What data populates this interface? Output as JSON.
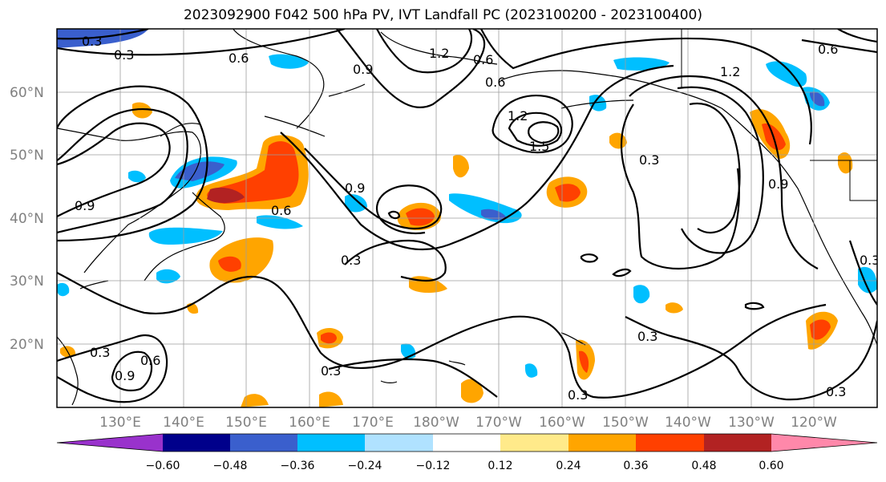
{
  "title": "2023092900 F042 500 hPa PV, IVT Landfall PC (2023100200 - 2023100400)",
  "map": {
    "lon_labels": [
      "130°E",
      "140°E",
      "150°E",
      "160°E",
      "170°E",
      "180°W",
      "170°W",
      "160°W",
      "150°W",
      "140°W",
      "130°W",
      "120°W"
    ],
    "lat_labels": [
      "60°N",
      "50°N",
      "40°N",
      "30°N",
      "20°N"
    ],
    "contour_labels": [
      "0.3",
      "0.3",
      "0.6",
      "0.9",
      "1.2",
      "0.6",
      "0.6",
      "1.2",
      "1.5",
      "1.2",
      "0.9",
      "0.9",
      "0.6",
      "0.3",
      "0.3",
      "0.6",
      "0.9",
      "0.3",
      "0.3",
      "0.3",
      "0.3",
      "0.3",
      "0.3",
      "0.9",
      "0.6"
    ]
  },
  "colorbar": {
    "ticks": [
      "−0.60",
      "−0.48",
      "−0.36",
      "−0.24",
      "−0.12",
      "0.12",
      "0.24",
      "0.36",
      "0.48",
      "0.60"
    ],
    "colors": [
      "#9932cc",
      "#00008b",
      "#3a5fcd",
      "#00bfff",
      "#b0e2ff",
      "#ffffff",
      "#ffea8a",
      "#ffa500",
      "#ff4000",
      "#b22222",
      "#ff88aa"
    ]
  }
}
